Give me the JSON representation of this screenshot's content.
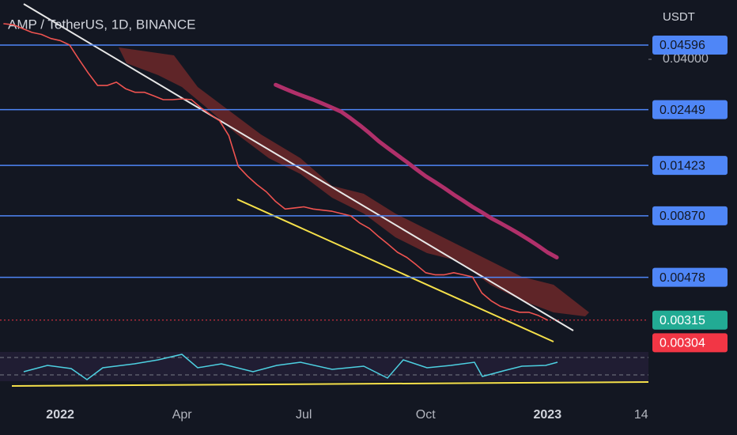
{
  "chart_data": {
    "type": "line",
    "title": "AMP / TetherUS, 1D, BINANCE",
    "currency": "USDT",
    "log_scale": true,
    "categories": [
      null,
      null,
      null,
      null,
      null,
      null,
      "2022",
      null,
      null,
      null,
      null,
      null,
      null,
      null,
      null,
      null,
      null,
      null,
      null,
      "Apr",
      null,
      null,
      null,
      null,
      null,
      null,
      null,
      null,
      null,
      null,
      null,
      null,
      "Jul",
      null,
      null,
      null,
      null,
      null,
      null,
      null,
      null,
      null,
      null,
      null,
      null,
      "Oct",
      null,
      null,
      null,
      null,
      null,
      null,
      null,
      null,
      null,
      null,
      null,
      null,
      "2023",
      null,
      null,
      null,
      null,
      null,
      null,
      null,
      null,
      null,
      "14"
    ],
    "series": [
      {
        "color": "#ef5350",
        "values": [
          0.0566,
          0.056,
          0.054,
          0.052,
          0.051,
          0.049,
          0.048,
          0.046,
          0.04,
          0.035,
          0.031,
          0.031,
          0.032,
          0.03,
          0.029,
          0.029,
          0.028,
          0.027,
          0.027,
          0.0272,
          0.027,
          0.025,
          0.0234,
          0.022,
          0.019,
          0.0141,
          0.0128,
          0.0118,
          0.011,
          0.01,
          0.0093,
          0.0094,
          0.0095,
          0.0093,
          0.0092,
          0.0091,
          0.0089,
          0.0087,
          0.0081,
          0.0077,
          0.0071,
          0.0066,
          0.0061,
          0.0058,
          0.0054,
          0.005,
          0.0049,
          0.0049,
          0.005,
          0.0049,
          0.0048,
          0.0041,
          0.0038,
          0.0036,
          0.0035,
          0.0034,
          0.0034,
          0.0033,
          0.00315,
          null,
          null,
          null,
          null,
          null,
          null,
          null,
          null,
          null,
          null
        ]
      },
      {
        "color": "#b0306a",
        "values": [
          null,
          null,
          null,
          null,
          null,
          null,
          null,
          null,
          null,
          null,
          null,
          null,
          null,
          null,
          null,
          null,
          null,
          null,
          null,
          null,
          null,
          null,
          null,
          null,
          null,
          null,
          null,
          null,
          null,
          0.0312,
          0.03,
          0.0289,
          0.0279,
          0.027,
          0.026,
          0.025,
          0.024,
          0.0225,
          0.021,
          0.0195,
          0.018,
          0.0168,
          0.0157,
          0.0147,
          0.0137,
          0.0128,
          0.0121,
          0.0114,
          0.0107,
          0.0101,
          0.0095,
          0.009,
          0.0085,
          0.0081,
          0.0077,
          0.0073,
          0.0069,
          0.0065,
          0.0061,
          0.0058,
          null,
          null,
          null,
          null,
          null,
          null,
          null,
          null,
          null
        ]
      }
    ],
    "ylim": [
      0.0024,
      0.0713
    ],
    "yticks": [
      {
        "value": 0.04,
        "label": "0.04000"
      }
    ],
    "levels": [
      0.04596,
      0.02449,
      0.01423,
      {
        "value": 0.0087,
        "label": "0.00870"
      },
      0.00478
    ],
    "level_color": "#4f86f7",
    "price_labels": [
      {
        "value": 0.00315,
        "label": "0.00315",
        "color": "#22ab94"
      },
      {
        "value": 0.00304,
        "label": "0.00304",
        "color": "#f23645"
      }
    ]
  }
}
